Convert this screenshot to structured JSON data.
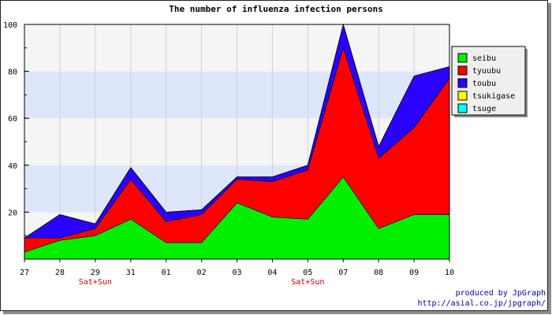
{
  "chart_data": {
    "type": "area",
    "stacked": true,
    "title": "The number of influenza infection persons",
    "categories": [
      "27",
      "28",
      "29",
      "31",
      "01",
      "02",
      "03",
      "04",
      "05",
      "07",
      "08",
      "09",
      "10"
    ],
    "category_notes": [
      {
        "category": "29",
        "text": "Sat+Sun"
      },
      {
        "category": "05",
        "text": "Sat+Sun"
      }
    ],
    "ylim": [
      0,
      100
    ],
    "yticks": [
      20,
      40,
      60,
      80,
      100
    ],
    "grid": "horizontal bands",
    "band_colors": [
      "#f5f5f5",
      "#dde6fb"
    ],
    "legend_position": "right",
    "series": [
      {
        "name": "seibu",
        "color": "#00ee00",
        "values": [
          3,
          8,
          10,
          17,
          7,
          7,
          24,
          18,
          17,
          35,
          13,
          19,
          19
        ]
      },
      {
        "name": "tyuubu",
        "color": "#ff0000",
        "values": [
          6,
          1,
          3,
          17,
          9,
          12,
          10,
          15,
          21,
          55,
          30,
          37,
          58
        ]
      },
      {
        "name": "toubu",
        "color": "#2a00ff",
        "values": [
          0,
          10,
          2,
          5,
          4,
          2,
          1,
          2,
          2,
          10,
          5,
          22,
          5
        ]
      },
      {
        "name": "tsukigase",
        "color": "#ffff00",
        "values": [
          0,
          0,
          0,
          0,
          0,
          0,
          0,
          0,
          0,
          0,
          0,
          0,
          0
        ]
      },
      {
        "name": "tsuge",
        "color": "#00ffff",
        "values": [
          0,
          0,
          0,
          0,
          0,
          0,
          0,
          0,
          0,
          0,
          0,
          0,
          0
        ]
      }
    ]
  },
  "credits": {
    "line1": "produced by JpGraph",
    "line2": "http://asial.co.jp/jpgraph/"
  }
}
